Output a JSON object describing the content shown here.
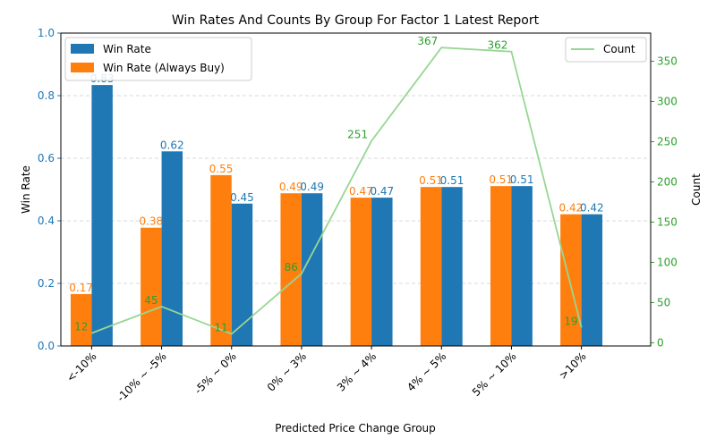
{
  "chart_data": {
    "type": "bar",
    "title": "Win Rates And Counts By Group For Factor 1 Latest Report",
    "xlabel": "Predicted Price Change Group",
    "ylabel": "Win Rate",
    "ylabel_right": "Count",
    "categories": [
      "<-10%",
      "-10% ~ -5%",
      "-5% ~ 0%",
      "0% ~ 3%",
      "3% ~ 4%",
      "4% ~ 5%",
      "5% ~ 10%",
      ">10%"
    ],
    "ylim": [
      0,
      1.0
    ],
    "yticks": [
      "0.0",
      "0.2",
      "0.4",
      "0.6",
      "0.8",
      "1.0"
    ],
    "ylim_right": [
      -4,
      385
    ],
    "yticks_right": [
      "0",
      "50",
      "100",
      "150",
      "200",
      "250",
      "300",
      "350"
    ],
    "grid": "horizontal dashed",
    "legend_left": "upper-left",
    "legend_right": "upper-right",
    "series": [
      {
        "name": "Win Rate (Always Buy)",
        "kind": "bar",
        "color": "#ff7f0e",
        "values": [
          0.166,
          0.378,
          0.546,
          0.488,
          0.474,
          0.508,
          0.511,
          0.421
        ],
        "labels": [
          "0.17",
          "0.38",
          "0.55",
          "0.49",
          "0.47",
          "0.51",
          "0.51",
          "0.42"
        ]
      },
      {
        "name": "Win Rate",
        "kind": "bar",
        "color": "#1f77b4",
        "values": [
          0.834,
          0.622,
          0.455,
          0.488,
          0.474,
          0.508,
          0.511,
          0.421
        ],
        "labels": [
          "0.83",
          "0.62",
          "0.45",
          "0.49",
          "0.47",
          "0.51",
          "0.51",
          "0.42"
        ]
      },
      {
        "name": "Count",
        "kind": "line",
        "axis": "right",
        "color": "#2ca02c",
        "line_color": "#98d694",
        "values": [
          12,
          45,
          11,
          86,
          251,
          367,
          362,
          19
        ],
        "labels": [
          "12",
          "45",
          "11",
          "86",
          "251",
          "367",
          "362",
          "19"
        ]
      }
    ]
  }
}
